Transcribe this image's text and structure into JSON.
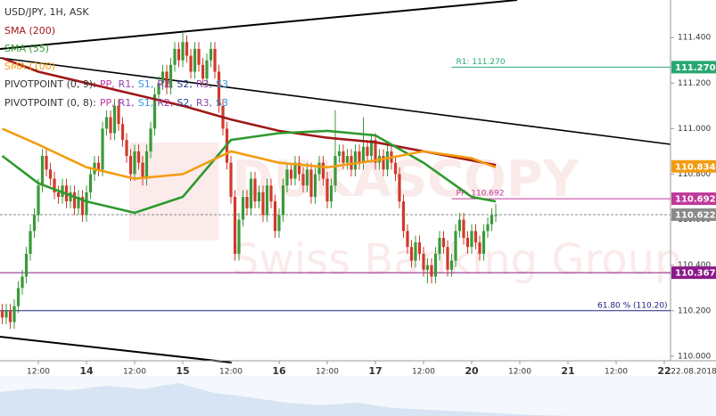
{
  "chart_data": {
    "type": "candlestick",
    "title": "USD/JPY, 1H, ASK",
    "watermark": [
      "DUKASCOPY",
      "Swiss Banking Group"
    ],
    "date_label": "22.08.2018",
    "xlim": [
      -21.56,
      145.56
    ],
    "ylim": [
      109.98,
      111.565
    ],
    "xticks": [
      {
        "value": -12,
        "label": "12:00"
      },
      {
        "value": 0,
        "label": "14"
      },
      {
        "value": 12,
        "label": "12:00"
      },
      {
        "value": 24,
        "label": "15"
      },
      {
        "value": 36,
        "label": "12:00"
      },
      {
        "value": 48,
        "label": "16"
      },
      {
        "value": 60,
        "label": "12:00"
      },
      {
        "value": 72,
        "label": "17"
      },
      {
        "value": 84,
        "label": "12:00"
      },
      {
        "value": 96,
        "label": "20"
      },
      {
        "value": 108,
        "label": "12:00"
      },
      {
        "value": 120,
        "label": "21"
      },
      {
        "value": 132,
        "label": "12:00"
      },
      {
        "value": 144,
        "label": "22"
      }
    ],
    "yticks": [
      {
        "value": 110,
        "label": "110.000"
      },
      {
        "value": 110.2,
        "label": "110.200"
      },
      {
        "value": 110.4,
        "label": "110.400"
      },
      {
        "value": 110.6,
        "label": "110.600"
      },
      {
        "value": 110.8,
        "label": "110.800"
      },
      {
        "value": 111,
        "label": "111.000"
      },
      {
        "value": 111.2,
        "label": "111.200"
      },
      {
        "value": 111.4,
        "label": "111.400"
      }
    ],
    "colors": {
      "up": "#3a9a3a",
      "down": "#d03a2a"
    },
    "candles": {
      "x": [
        -21,
        -20,
        -19,
        -18,
        -17,
        -16,
        -15,
        -14,
        -13,
        -12,
        -11,
        -10,
        -9,
        -8,
        -7,
        -6,
        -5,
        -4,
        -3,
        -2,
        -1,
        0,
        1,
        2,
        3,
        4,
        5,
        6,
        7,
        8,
        9,
        10,
        11,
        12,
        13,
        14,
        15,
        16,
        17,
        18,
        19,
        20,
        21,
        22,
        23,
        24,
        25,
        26,
        27,
        28,
        29,
        30,
        31,
        32,
        33,
        34,
        35,
        36,
        37,
        38,
        39,
        40,
        41,
        42,
        43,
        44,
        45,
        46,
        47,
        48,
        49,
        50,
        51,
        52,
        53,
        54,
        55,
        56,
        57,
        58,
        59,
        60,
        61,
        62,
        63,
        64,
        65,
        66,
        67,
        68,
        69,
        70,
        71,
        72,
        73,
        74,
        75,
        76,
        77,
        78,
        79,
        80,
        81,
        82,
        83,
        84,
        85,
        86,
        87,
        88,
        89,
        90,
        91,
        92,
        93,
        94,
        95,
        96,
        97,
        98,
        99,
        100,
        101,
        102
      ],
      "open": [
        110.2,
        110.17,
        110.2,
        110.15,
        110.22,
        110.3,
        110.35,
        110.45,
        110.55,
        110.62,
        110.75,
        110.88,
        110.82,
        110.78,
        110.72,
        110.7,
        110.75,
        110.68,
        110.72,
        110.65,
        110.7,
        110.62,
        110.72,
        110.8,
        110.85,
        110.82,
        111.0,
        111.05,
        110.98,
        111.1,
        111.02,
        110.95,
        110.88,
        110.8,
        110.9,
        110.85,
        110.78,
        110.9,
        111.0,
        111.15,
        111.2,
        111.25,
        111.18,
        111.28,
        111.35,
        111.3,
        111.38,
        111.32,
        111.25,
        111.35,
        111.28,
        111.22,
        111.3,
        111.35,
        111.25,
        111.1,
        111.0,
        110.85,
        110.7,
        110.45,
        110.6,
        110.7,
        110.65,
        110.78,
        110.68,
        110.72,
        110.62,
        110.75,
        110.68,
        110.55,
        110.62,
        110.75,
        110.82,
        110.78,
        110.85,
        110.8,
        110.75,
        110.82,
        110.7,
        110.8,
        110.85,
        110.78,
        110.68,
        110.75,
        110.88,
        110.9,
        110.85,
        110.88,
        110.82,
        110.9,
        110.85,
        110.92,
        110.88,
        110.95,
        110.85,
        110.88,
        110.82,
        110.9,
        110.85,
        110.8,
        110.68,
        110.55,
        110.48,
        110.42,
        110.5,
        110.45,
        110.38,
        110.4,
        110.35,
        110.45,
        110.52,
        110.48,
        110.38,
        110.42,
        110.55,
        110.6,
        110.52,
        110.48,
        110.55,
        110.5,
        110.45,
        110.55,
        110.58,
        110.62
      ],
      "high": [
        110.23,
        110.23,
        110.23,
        110.25,
        110.33,
        110.38,
        110.48,
        110.58,
        110.65,
        110.78,
        110.91,
        110.91,
        110.85,
        110.81,
        110.75,
        110.78,
        110.78,
        110.75,
        110.75,
        110.73,
        110.73,
        110.75,
        110.83,
        110.88,
        110.88,
        111.03,
        111.08,
        111.08,
        111.13,
        111.13,
        111.05,
        110.98,
        110.91,
        110.93,
        110.93,
        110.88,
        110.93,
        111.03,
        111.18,
        111.23,
        111.28,
        111.28,
        111.31,
        111.38,
        111.38,
        111.42,
        111.41,
        111.35,
        111.38,
        111.38,
        111.31,
        111.33,
        111.38,
        111.38,
        111.28,
        111.13,
        111.03,
        110.88,
        110.73,
        110.63,
        110.73,
        110.73,
        110.81,
        110.81,
        110.75,
        110.75,
        110.78,
        110.78,
        110.71,
        110.65,
        110.78,
        110.85,
        110.85,
        110.88,
        110.88,
        110.83,
        110.85,
        110.85,
        110.83,
        110.88,
        110.88,
        110.81,
        110.78,
        111.08,
        110.93,
        110.93,
        110.91,
        110.91,
        110.93,
        110.93,
        111.05,
        110.95,
        110.98,
        110.98,
        110.91,
        110.91,
        110.93,
        110.93,
        110.88,
        110.83,
        110.71,
        110.58,
        110.51,
        110.53,
        110.53,
        110.48,
        110.43,
        110.43,
        110.48,
        110.55,
        110.55,
        110.51,
        110.45,
        110.58,
        110.63,
        110.63,
        110.55,
        110.58,
        110.58,
        110.53,
        110.58,
        110.61,
        110.65,
        110.67
      ],
      "low": [
        110.14,
        110.14,
        110.12,
        110.12,
        110.19,
        110.27,
        110.32,
        110.42,
        110.52,
        110.59,
        110.72,
        110.79,
        110.75,
        110.69,
        110.67,
        110.67,
        110.65,
        110.65,
        110.62,
        110.62,
        110.59,
        110.59,
        110.69,
        110.77,
        110.79,
        110.79,
        110.97,
        110.95,
        110.95,
        110.99,
        110.92,
        110.85,
        110.77,
        110.77,
        110.82,
        110.75,
        110.75,
        110.87,
        110.97,
        111.12,
        111.17,
        111.15,
        111.15,
        111.25,
        111.27,
        111.27,
        111.29,
        111.22,
        111.22,
        111.25,
        111.19,
        111.19,
        111.27,
        111.22,
        111.07,
        110.97,
        110.82,
        110.67,
        110.42,
        110.42,
        110.57,
        110.62,
        110.62,
        110.65,
        110.65,
        110.59,
        110.59,
        110.65,
        110.52,
        110.52,
        110.59,
        110.72,
        110.75,
        110.75,
        110.77,
        110.72,
        110.72,
        110.67,
        110.67,
        110.77,
        110.75,
        110.65,
        110.65,
        110.72,
        110.85,
        110.82,
        110.82,
        110.79,
        110.79,
        110.82,
        110.82,
        110.85,
        110.85,
        110.82,
        110.82,
        110.79,
        110.79,
        110.82,
        110.77,
        110.65,
        110.52,
        110.45,
        110.39,
        110.39,
        110.42,
        110.35,
        110.32,
        110.32,
        110.32,
        110.42,
        110.45,
        110.35,
        110.35,
        110.39,
        110.52,
        110.49,
        110.45,
        110.45,
        110.47,
        110.42,
        110.42,
        110.52,
        110.55,
        110.59
      ],
      "close": [
        110.17,
        110.2,
        110.15,
        110.22,
        110.3,
        110.35,
        110.45,
        110.55,
        110.62,
        110.75,
        110.88,
        110.82,
        110.78,
        110.72,
        110.7,
        110.75,
        110.68,
        110.72,
        110.65,
        110.7,
        110.62,
        110.72,
        110.8,
        110.85,
        110.82,
        111.0,
        111.05,
        110.98,
        111.1,
        111.02,
        110.95,
        110.88,
        110.8,
        110.9,
        110.85,
        110.78,
        110.9,
        111.0,
        111.15,
        111.2,
        111.25,
        111.18,
        111.28,
        111.35,
        111.3,
        111.38,
        111.32,
        111.25,
        111.35,
        111.28,
        111.22,
        111.3,
        111.35,
        111.25,
        111.1,
        111.0,
        110.85,
        110.7,
        110.45,
        110.6,
        110.7,
        110.65,
        110.78,
        110.68,
        110.72,
        110.62,
        110.75,
        110.68,
        110.55,
        110.62,
        110.75,
        110.82,
        110.78,
        110.85,
        110.8,
        110.75,
        110.82,
        110.7,
        110.8,
        110.85,
        110.78,
        110.68,
        110.75,
        110.88,
        110.9,
        110.85,
        110.88,
        110.82,
        110.9,
        110.85,
        110.92,
        110.88,
        110.95,
        110.85,
        110.88,
        110.82,
        110.9,
        110.85,
        110.8,
        110.68,
        110.55,
        110.48,
        110.42,
        110.5,
        110.45,
        110.38,
        110.4,
        110.35,
        110.45,
        110.52,
        110.48,
        110.38,
        110.42,
        110.55,
        110.6,
        110.52,
        110.48,
        110.55,
        110.5,
        110.45,
        110.55,
        110.58,
        110.62,
        110.62
      ]
    },
    "series": [
      {
        "name": "SMA (200)",
        "color": "#a01818",
        "x": [
          -21,
          -12,
          0,
          12,
          24,
          36,
          48,
          60,
          72,
          84,
          96,
          102
        ],
        "values": [
          111.31,
          111.25,
          111.2,
          111.15,
          111.1,
          111.04,
          110.99,
          110.96,
          110.94,
          110.9,
          110.86,
          110.84
        ]
      },
      {
        "name": "SMA (55)",
        "color": "#2e9a2e",
        "x": [
          -21,
          -12,
          0,
          12,
          24,
          36,
          48,
          60,
          72,
          84,
          96,
          102
        ],
        "values": [
          110.88,
          110.76,
          110.68,
          110.63,
          110.7,
          110.95,
          110.98,
          110.99,
          110.97,
          110.85,
          110.7,
          110.68
        ]
      },
      {
        "name": "SMA (100)",
        "color": "#f39c12",
        "x": [
          -21,
          -12,
          0,
          12,
          24,
          36,
          48,
          60,
          72,
          84,
          96,
          102
        ],
        "values": [
          111.0,
          110.93,
          110.83,
          110.78,
          110.8,
          110.9,
          110.85,
          110.83,
          110.86,
          110.9,
          110.87,
          110.83
        ]
      }
    ],
    "pivot_legends": [
      {
        "label": "PIVOTPOINT (0, 9):",
        "items": [
          "PP,",
          "R1,",
          "S1,",
          "R2,",
          "S2,",
          "R3,",
          "S3"
        ]
      },
      {
        "label": "PIVOTPOINT (0, 8):",
        "items": [
          "PP,",
          "R1,",
          "S1,",
          "R2,",
          "S2,",
          "R3,",
          "S3"
        ]
      }
    ],
    "pivot_item_colors": [
      "#c0399b",
      "#8e44ad",
      "#3498db",
      "#8e44ad",
      "#2c3e90",
      "#8e44ad",
      "#3498db"
    ],
    "levels": [
      {
        "value": 111.27,
        "label": "R1: 111.270",
        "price_label": "111.270",
        "color": "#27a870",
        "x_start": 91
      },
      {
        "value": 110.834,
        "price_label": "110.834",
        "color": "#f39c12"
      },
      {
        "value": 110.692,
        "label": "PP: 110.692",
        "price_label": "110.692",
        "color": "#c0399b",
        "x_start": 91
      },
      {
        "value": 110.622,
        "price_label": "110.622",
        "color": "#8a8a8a",
        "dashed": true,
        "x_start": -21.56
      },
      {
        "value": 110.367,
        "price_label": "110.367",
        "color": "#8b1a8b",
        "x_start": -21.56
      },
      {
        "value": 110.2,
        "label": "61.80 % (110.20)",
        "color": "#1a237e",
        "x_start": -21.56
      }
    ]
  }
}
